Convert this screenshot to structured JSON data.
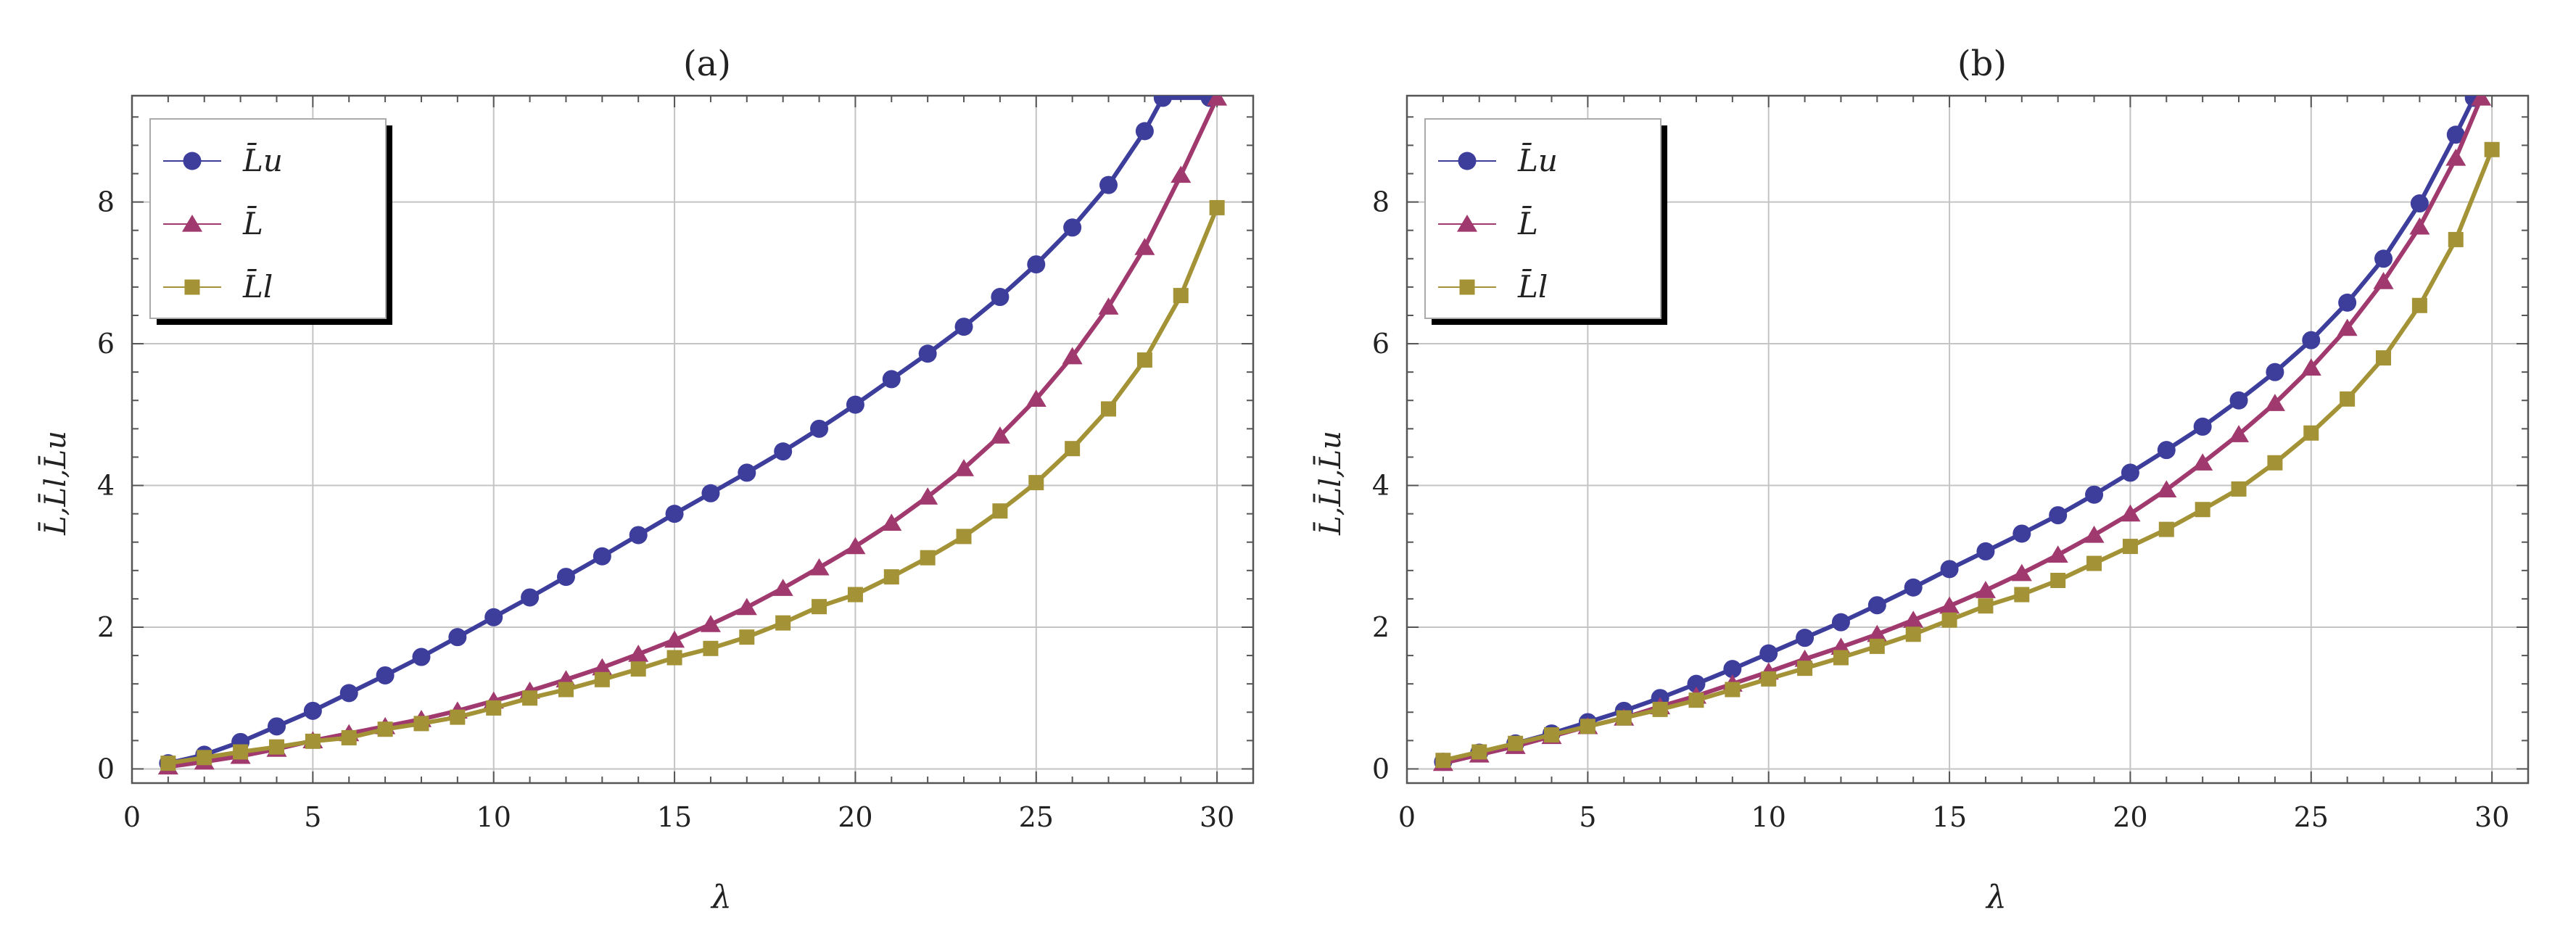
{
  "colors": {
    "upper": "#3d3d9c",
    "mid": "#a03a6e",
    "lower": "#a39236",
    "grid": "#c4c4c4",
    "axis": "#555555"
  },
  "legend_labels": {
    "upper": "L̄u",
    "mid": "L̄",
    "lower": "L̄l"
  },
  "chart_data": [
    {
      "type": "line",
      "title": "(a)",
      "xlabel": "λ",
      "ylabel": "L̄,L̄l,L̄u",
      "xlim": [
        0,
        31
      ],
      "ylim": [
        -0.2,
        9.5
      ],
      "grid": true,
      "legend_position": "top-left",
      "x_ticks": [
        0,
        5,
        10,
        15,
        20,
        25,
        30
      ],
      "y_ticks": [
        0,
        2,
        4,
        6,
        8
      ],
      "x_tick_labels": [
        "0",
        "5",
        "10",
        "15",
        "20",
        "25",
        "30"
      ],
      "y_tick_labels": [
        "0",
        "2",
        "4",
        "6",
        "8"
      ],
      "series": [
        {
          "name": "L̄u",
          "key": "upper",
          "marker": "circle",
          "x": [
            1,
            2,
            3,
            4,
            5,
            6,
            7,
            8,
            9,
            10,
            11,
            12,
            13,
            14,
            15,
            16,
            17,
            18,
            19,
            20,
            21,
            22,
            23,
            24,
            25,
            26,
            27,
            28,
            28.5,
            29.8
          ],
          "values": [
            0.08,
            0.2,
            0.38,
            0.6,
            0.82,
            1.07,
            1.32,
            1.58,
            1.86,
            2.14,
            2.42,
            2.71,
            3.0,
            3.3,
            3.6,
            3.89,
            4.18,
            4.48,
            4.8,
            5.14,
            5.5,
            5.86,
            6.24,
            6.66,
            7.12,
            7.64,
            8.24,
            9.0,
            9.47,
            9.47
          ]
        },
        {
          "name": "L̄",
          "key": "mid",
          "marker": "triangle",
          "x": [
            1,
            2,
            3,
            4,
            5,
            6,
            7,
            8,
            9,
            10,
            11,
            12,
            13,
            14,
            15,
            16,
            17,
            18,
            19,
            20,
            21,
            22,
            23,
            24,
            25,
            26,
            27,
            28,
            29,
            30
          ],
          "values": [
            0.03,
            0.1,
            0.18,
            0.28,
            0.4,
            0.5,
            0.6,
            0.7,
            0.82,
            0.96,
            1.1,
            1.26,
            1.43,
            1.62,
            1.82,
            2.04,
            2.28,
            2.55,
            2.84,
            3.14,
            3.47,
            3.84,
            4.24,
            4.7,
            5.22,
            5.82,
            6.52,
            7.36,
            8.38,
            9.47
          ]
        },
        {
          "name": "L̄l",
          "key": "lower",
          "marker": "square",
          "x": [
            1,
            2,
            3,
            4,
            5,
            6,
            7,
            8,
            9,
            10,
            11,
            12,
            13,
            14,
            15,
            16,
            17,
            18,
            19,
            20,
            21,
            22,
            23,
            24,
            25,
            26,
            27,
            28,
            29,
            30
          ],
          "values": [
            0.08,
            0.16,
            0.24,
            0.31,
            0.39,
            0.44,
            0.56,
            0.64,
            0.73,
            0.86,
            1.0,
            1.12,
            1.26,
            1.41,
            1.57,
            1.7,
            1.86,
            2.06,
            2.29,
            2.46,
            2.71,
            2.98,
            3.28,
            3.64,
            4.04,
            4.52,
            5.08,
            5.77,
            6.68,
            7.92
          ]
        }
      ]
    },
    {
      "type": "line",
      "title": "(b)",
      "xlabel": "λ",
      "ylabel": "L̄,L̄l,L̄u",
      "xlim": [
        0,
        31
      ],
      "ylim": [
        -0.2,
        9.5
      ],
      "grid": true,
      "legend_position": "top-left",
      "x_ticks": [
        0,
        5,
        10,
        15,
        20,
        25,
        30
      ],
      "y_ticks": [
        0,
        2,
        4,
        6,
        8
      ],
      "x_tick_labels": [
        "0",
        "5",
        "10",
        "15",
        "20",
        "25",
        "30"
      ],
      "y_tick_labels": [
        "0",
        "2",
        "4",
        "6",
        "8"
      ],
      "series": [
        {
          "name": "L̄u",
          "key": "upper",
          "marker": "circle",
          "x": [
            1,
            2,
            3,
            4,
            5,
            6,
            7,
            8,
            9,
            10,
            11,
            12,
            13,
            14,
            15,
            16,
            17,
            18,
            19,
            20,
            21,
            22,
            23,
            24,
            25,
            26,
            27,
            28,
            29,
            29.5
          ],
          "values": [
            0.1,
            0.23,
            0.36,
            0.5,
            0.66,
            0.82,
            1.0,
            1.2,
            1.41,
            1.63,
            1.85,
            2.07,
            2.31,
            2.56,
            2.82,
            3.07,
            3.32,
            3.58,
            3.87,
            4.18,
            4.5,
            4.83,
            5.2,
            5.6,
            6.05,
            6.58,
            7.2,
            7.98,
            8.95,
            9.47
          ]
        },
        {
          "name": "L̄",
          "key": "mid",
          "marker": "triangle",
          "x": [
            1,
            2,
            3,
            4,
            5,
            6,
            7,
            8,
            9,
            10,
            11,
            12,
            13,
            14,
            15,
            16,
            17,
            18,
            19,
            20,
            21,
            22,
            23,
            24,
            25,
            26,
            27,
            28,
            29,
            29.7
          ],
          "values": [
            0.08,
            0.2,
            0.32,
            0.46,
            0.6,
            0.72,
            0.88,
            1.03,
            1.2,
            1.37,
            1.55,
            1.72,
            1.9,
            2.1,
            2.3,
            2.52,
            2.76,
            3.02,
            3.3,
            3.6,
            3.94,
            4.32,
            4.72,
            5.16,
            5.66,
            6.22,
            6.88,
            7.65,
            8.62,
            9.47
          ]
        },
        {
          "name": "L̄l",
          "key": "lower",
          "marker": "square",
          "x": [
            1,
            2,
            3,
            4,
            5,
            6,
            7,
            8,
            9,
            10,
            11,
            12,
            13,
            14,
            15,
            16,
            17,
            18,
            19,
            20,
            21,
            22,
            23,
            24,
            25,
            26,
            27,
            28,
            29,
            30
          ],
          "values": [
            0.12,
            0.24,
            0.36,
            0.48,
            0.6,
            0.72,
            0.84,
            0.97,
            1.12,
            1.27,
            1.42,
            1.57,
            1.73,
            1.9,
            2.1,
            2.3,
            2.46,
            2.66,
            2.9,
            3.14,
            3.38,
            3.66,
            3.95,
            4.32,
            4.74,
            5.22,
            5.8,
            6.54,
            7.47,
            8.74
          ]
        }
      ]
    }
  ]
}
